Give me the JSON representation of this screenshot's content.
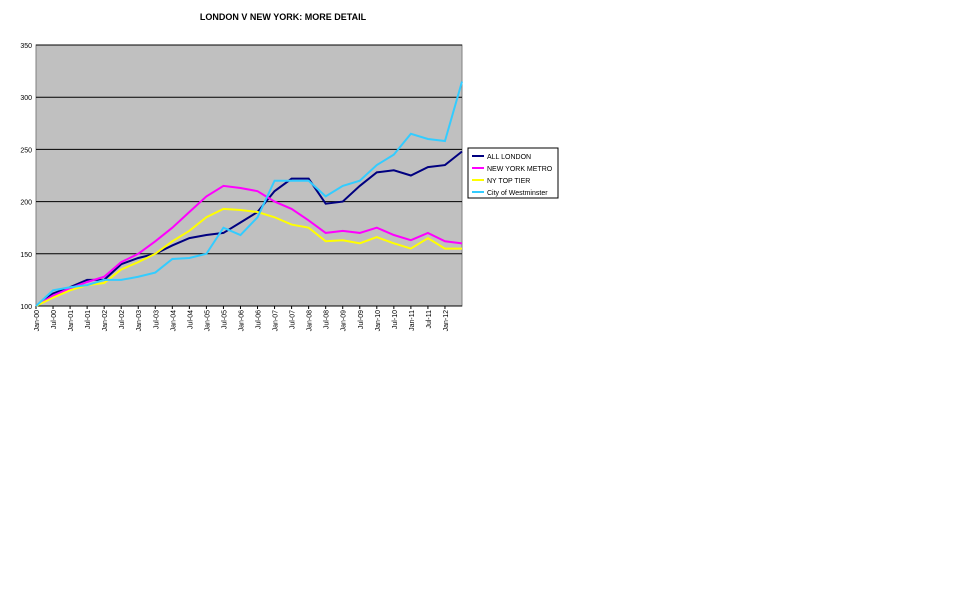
{
  "chart_data": {
    "type": "line",
    "title": "LONDON V NEW YORK: MORE DETAIL",
    "categories": [
      "Jan-00",
      "Jul-00",
      "Jan-01",
      "Jul-01",
      "Jan-02",
      "Jul-02",
      "Jan-03",
      "Jul-03",
      "Jan-04",
      "Jul-04",
      "Jan-05",
      "Jul-05",
      "Jan-06",
      "Jul-06",
      "Jan-07",
      "Jul-07",
      "Jan-08",
      "Jul-08",
      "Jan-09",
      "Jul-09",
      "Jan-10",
      "Jul-10",
      "Jan-11",
      "Jul-11",
      "Jan-12",
      null
    ],
    "series": [
      {
        "name": "ALL LONDON",
        "color": "#000080",
        "values": [
          100,
          112,
          118,
          125,
          125,
          140,
          146,
          150,
          158,
          165,
          168,
          170,
          180,
          190,
          210,
          222,
          222,
          198,
          200,
          215,
          228,
          230,
          225,
          233,
          235,
          248
        ]
      },
      {
        "name": "NEW YORK METRO",
        "color": "#ff00ff",
        "values": [
          100,
          110,
          117,
          123,
          128,
          142,
          150,
          162,
          175,
          190,
          205,
          215,
          213,
          210,
          200,
          193,
          182,
          170,
          172,
          170,
          175,
          168,
          163,
          170,
          162,
          160
        ]
      },
      {
        "name": "NY TOP TIER",
        "color": "#ffff00",
        "values": [
          100,
          108,
          115,
          120,
          122,
          135,
          142,
          150,
          162,
          172,
          185,
          193,
          192,
          190,
          185,
          178,
          175,
          162,
          163,
          160,
          166,
          160,
          155,
          165,
          155,
          155
        ]
      },
      {
        "name": "City of Westminster",
        "color": "#33ccff",
        "values": [
          100,
          115,
          118,
          120,
          125,
          125,
          128,
          132,
          145,
          146,
          150,
          175,
          168,
          185,
          220,
          220,
          220,
          205,
          215,
          220,
          235,
          245,
          265,
          260,
          258,
          315
        ]
      }
    ],
    "ylim": [
      100,
      350
    ],
    "yticks": [
      100,
      150,
      200,
      250,
      300,
      350
    ],
    "grid": true,
    "legend": "right"
  }
}
